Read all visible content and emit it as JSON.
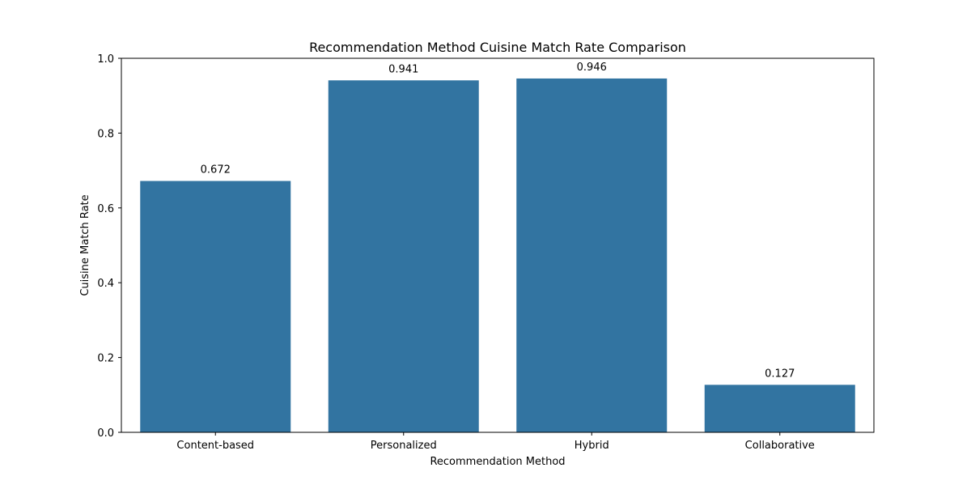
{
  "chart_data": {
    "type": "bar",
    "title": "Recommendation Method Cuisine Match Rate Comparison",
    "xlabel": "Recommendation Method",
    "ylabel": "Cuisine Match Rate",
    "categories": [
      "Content-based",
      "Personalized",
      "Hybrid",
      "Collaborative"
    ],
    "values": [
      0.672,
      0.941,
      0.946,
      0.127
    ],
    "data_labels": [
      "0.672",
      "0.941",
      "0.946",
      "0.127"
    ],
    "ylim": [
      0,
      1.0
    ],
    "yticks": [
      0.0,
      0.2,
      0.4,
      0.6,
      0.8,
      1.0
    ],
    "ytick_labels": [
      "0.0",
      "0.2",
      "0.4",
      "0.6",
      "0.8",
      "1.0"
    ],
    "grid": false,
    "legend": "none",
    "bar_color": "#3274a1"
  }
}
